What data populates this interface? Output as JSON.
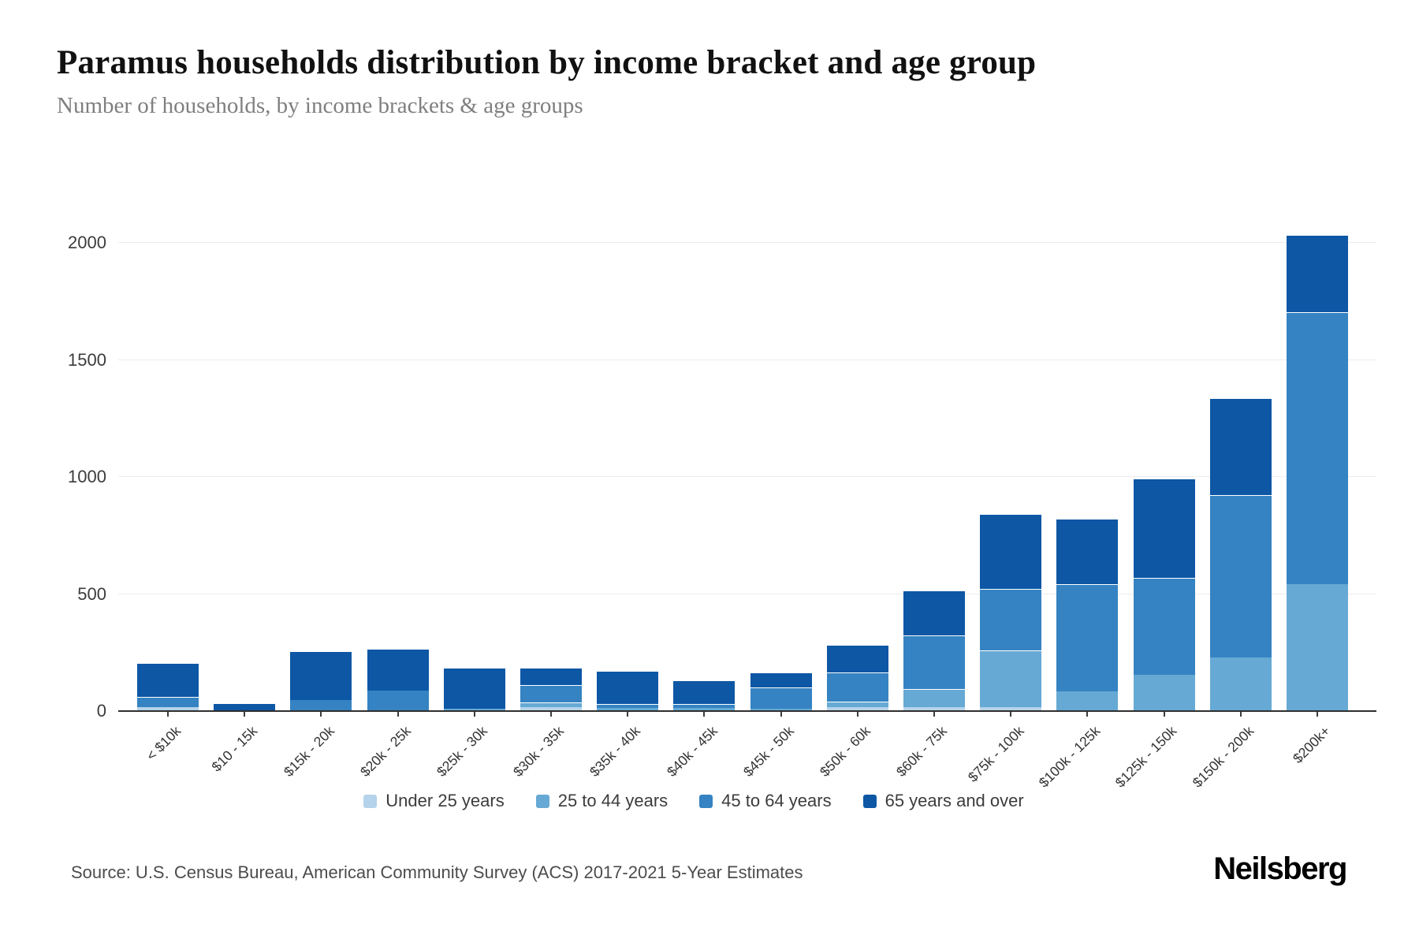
{
  "header": {
    "title": "Paramus households distribution by income bracket and age group",
    "subtitle": "Number of households, by income brackets & age groups"
  },
  "chart_data": {
    "type": "bar",
    "stacked": true,
    "title": "Paramus households distribution by income bracket and age group",
    "xlabel": "",
    "ylabel": "",
    "ylim": [
      0,
      2100
    ],
    "yticks": [
      0,
      500,
      1000,
      1500,
      2000
    ],
    "grid": true,
    "legend_position": "bottom",
    "categories": [
      "< $10k",
      "$10 - 15k",
      "$15k - 20k",
      "$20k - 25k",
      "$25k - 30k",
      "$30k - 35k",
      "$35k - 40k",
      "$40k - 45k",
      "$45k - 50k",
      "$50k - 60k",
      "$60k - 75k",
      "$75k - 100k",
      "$100k - 125k",
      "$125k - 150k",
      "$150k - 200k",
      "$200k+"
    ],
    "series": [
      {
        "name": "Under 25 years",
        "color": "#b5d3ea",
        "values": [
          12,
          0,
          0,
          0,
          0,
          13,
          0,
          0,
          0,
          14,
          15,
          15,
          0,
          0,
          0,
          0
        ]
      },
      {
        "name": "25 to 44 years",
        "color": "#66a9d4",
        "values": [
          0,
          0,
          0,
          0,
          6,
          22,
          9,
          9,
          6,
          23,
          75,
          240,
          80,
          150,
          225,
          540
        ]
      },
      {
        "name": "45 to 64 years",
        "color": "#3583c2",
        "values": [
          45,
          0,
          44,
          85,
          0,
          72,
          19,
          17,
          90,
          124,
          230,
          265,
          460,
          415,
          695,
          1160
        ]
      },
      {
        "name": "65 years and over",
        "color": "#0d57a5",
        "values": [
          145,
          27,
          209,
          178,
          177,
          75,
          139,
          103,
          65,
          118,
          193,
          317,
          278,
          425,
          415,
          330
        ]
      }
    ]
  },
  "footer": {
    "source": "Source: U.S. Census Bureau, American Community Survey (ACS) 2017-2021 5-Year Estimates",
    "brand": "Neilsberg"
  }
}
